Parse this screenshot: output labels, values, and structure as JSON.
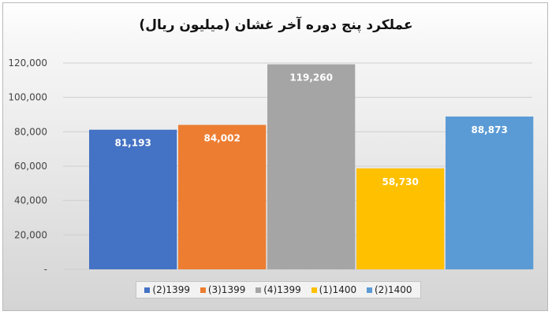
{
  "chart_data": {
    "type": "bar",
    "title": "عملکرد پنج دوره آخر غشان (میلیون ریال)",
    "categories": [
      "(2)1399",
      "(3)1399",
      "(4)1399",
      "(1)1400",
      "(2)1400"
    ],
    "values": [
      81193,
      84002,
      119260,
      58730,
      88873
    ],
    "value_labels": [
      "81,193",
      "84,002",
      "119,260",
      "58,730",
      "88,873"
    ],
    "colors": [
      "#4472c4",
      "#ed7d31",
      "#a5a5a5",
      "#ffc000",
      "#5b9bd5"
    ],
    "ylim": [
      0,
      120000
    ],
    "yticks": [
      0,
      20000,
      40000,
      60000,
      80000,
      100000,
      120000
    ],
    "ytick_labels": [
      "-",
      "20,000",
      "40,000",
      "60,000",
      "80,000",
      "100,000",
      "120,000"
    ],
    "grid": true,
    "legend_position": "bottom"
  }
}
